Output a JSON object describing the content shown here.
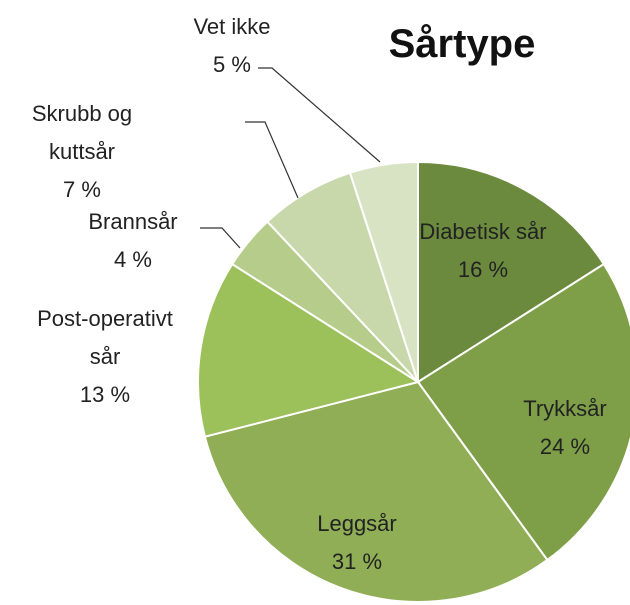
{
  "chart_data": {
    "type": "pie",
    "title": "Sårtype",
    "categories": [
      "Diabetisk sår",
      "Trykksår",
      "Leggsår",
      "Post-operativt sår",
      "Brannsår",
      "Skrubb og kuttsår",
      "Vet ikke"
    ],
    "values": [
      16,
      24,
      31,
      13,
      4,
      7,
      5
    ],
    "value_labels": [
      "16 %",
      "24 %",
      "31 %",
      "13 %",
      "4 %",
      "7 %",
      "5 %"
    ],
    "colors": [
      "#6b8a3e",
      "#7e9e48",
      "#8fae55",
      "#9cc05a",
      "#b5cc8a",
      "#c8d8aa",
      "#d8e3c4"
    ]
  }
}
